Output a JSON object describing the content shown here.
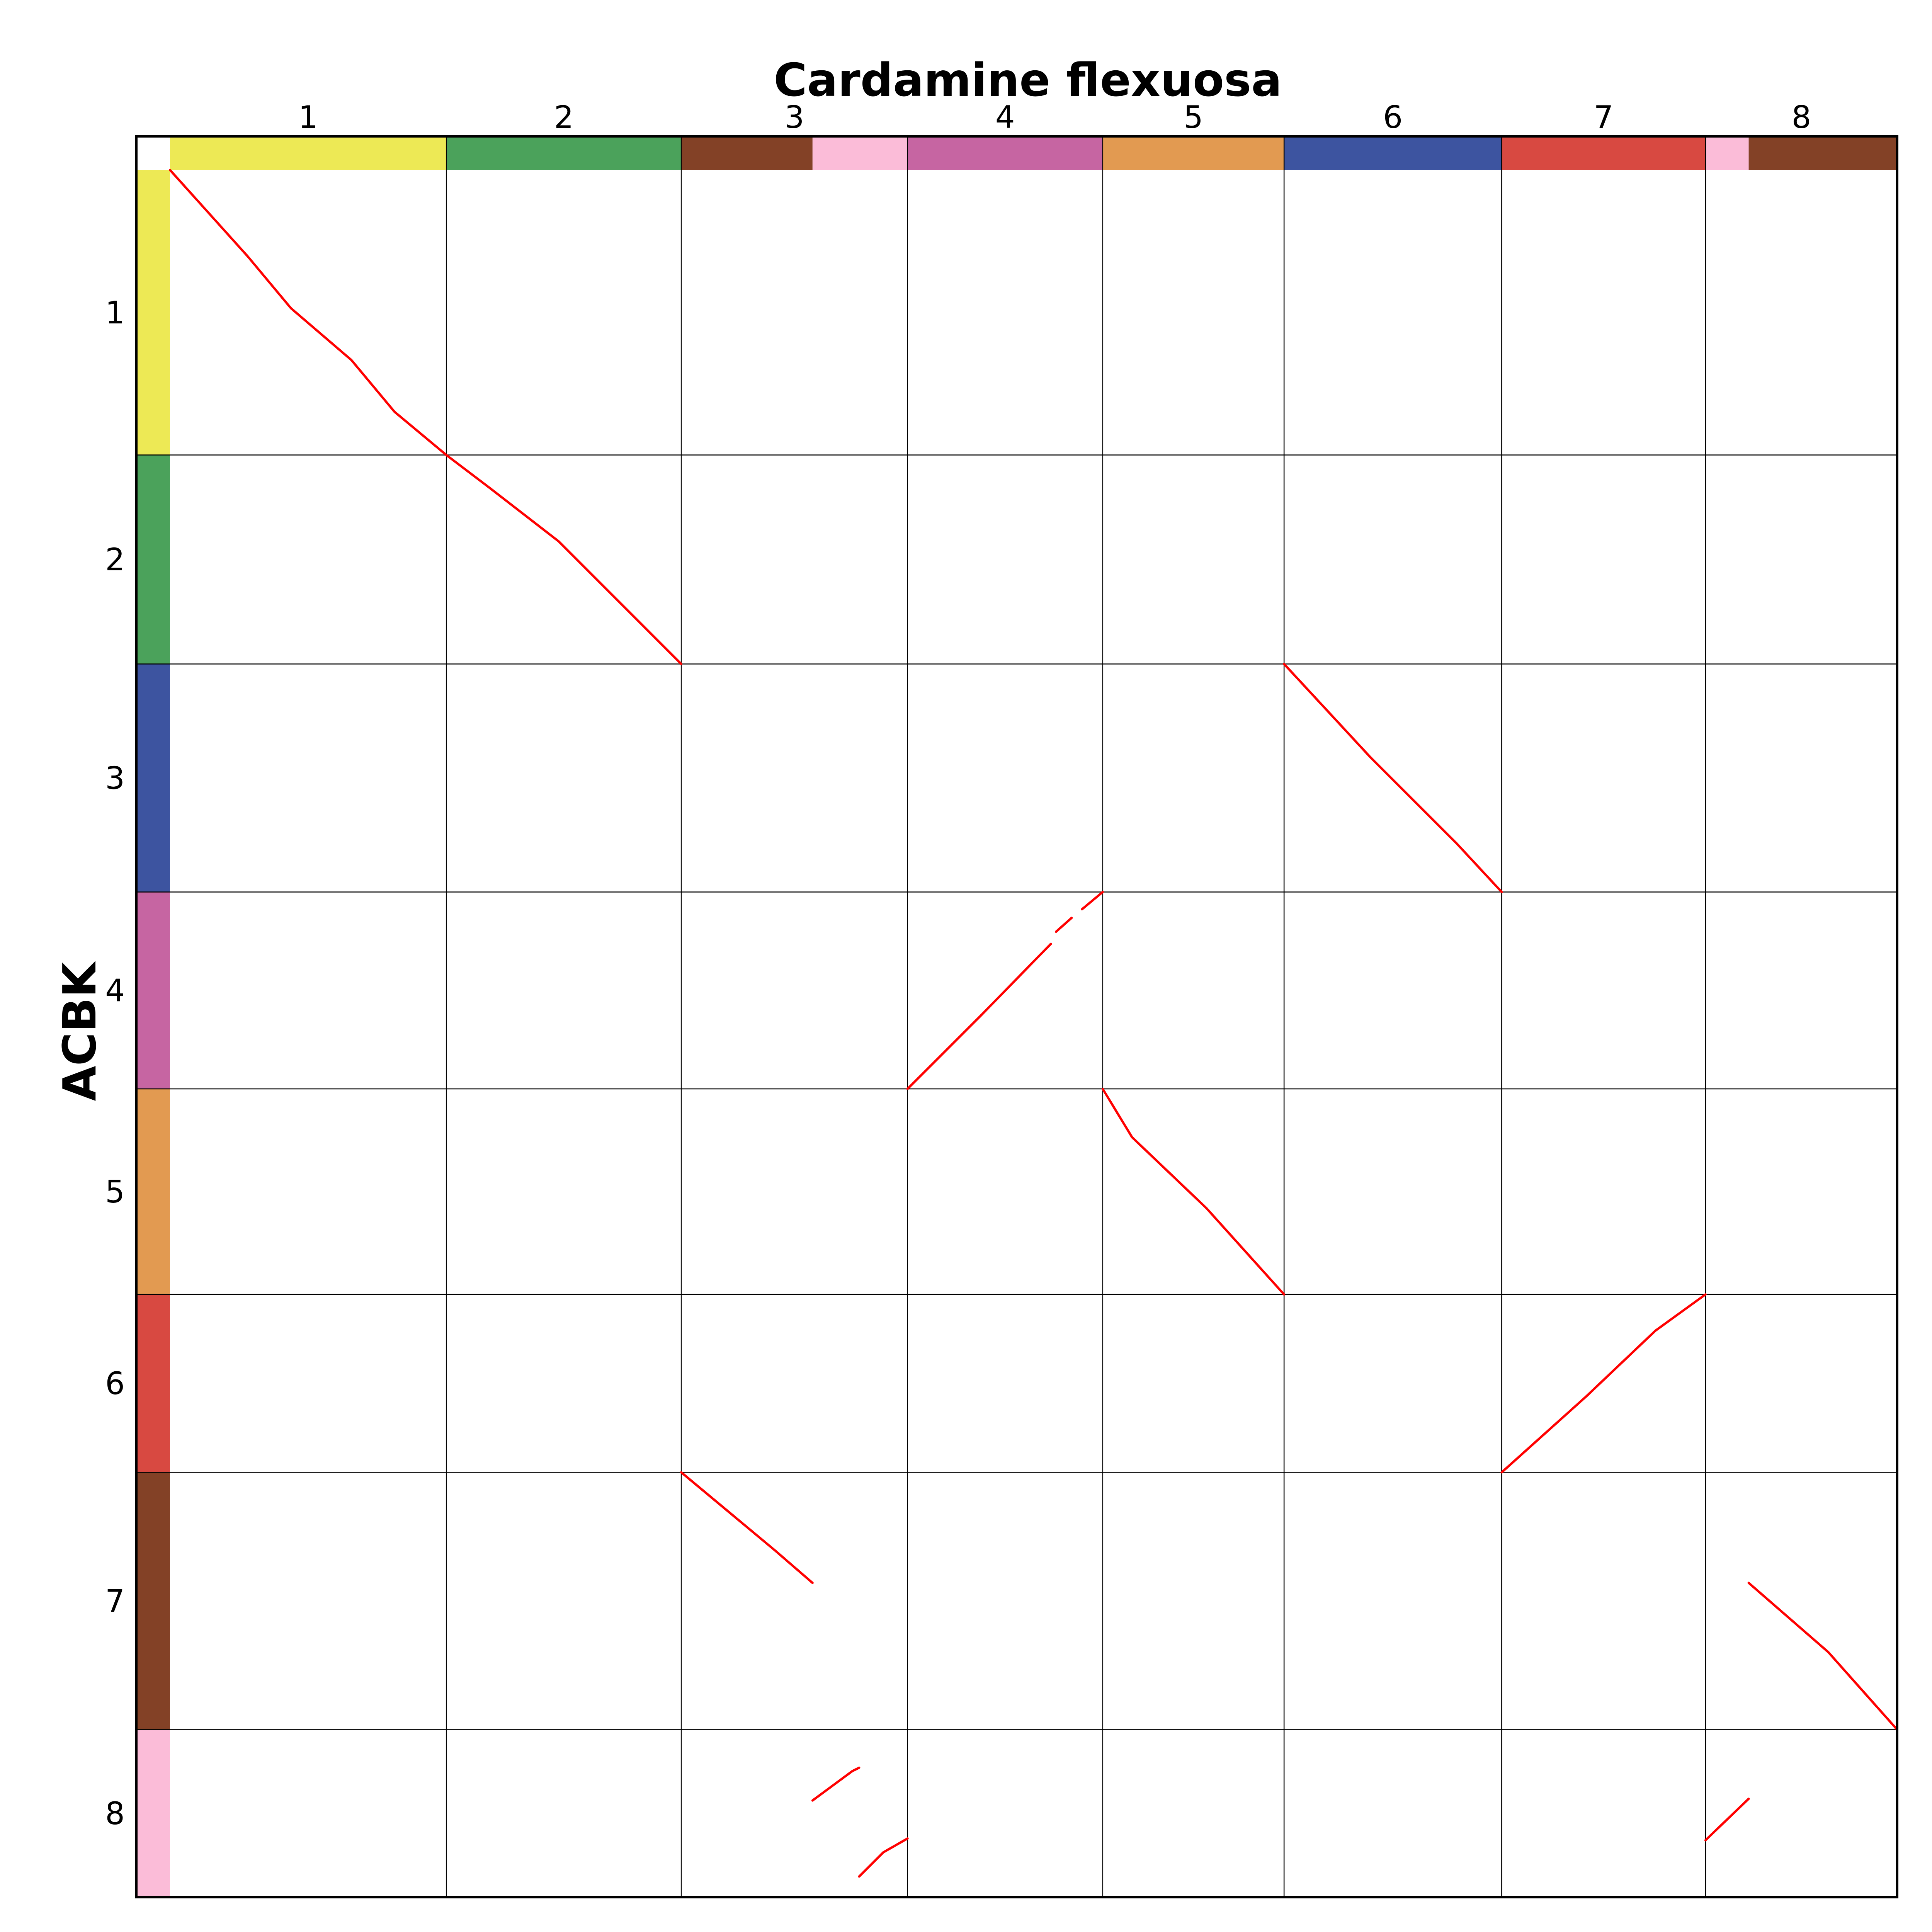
{
  "chart_data": {
    "type": "scatter",
    "title": "Cardamine flexuosa",
    "xlabel": "Cardamine flexuosa",
    "ylabel": "ACBK",
    "x_chromosomes": [
      "1",
      "2",
      "3",
      "4",
      "5",
      "6",
      "7",
      "8"
    ],
    "y_chromosomes": [
      "1",
      "2",
      "3",
      "4",
      "5",
      "6",
      "7",
      "8"
    ],
    "x_boundaries": [
      0,
      0.16,
      0.296,
      0.427,
      0.54,
      0.645,
      0.771,
      0.889,
      1.0
    ],
    "y_boundaries": [
      0,
      0.165,
      0.286,
      0.418,
      0.532,
      0.651,
      0.754,
      0.903,
      1.0
    ],
    "x_color_segments": [
      {
        "start": 0.0,
        "end": 0.16,
        "color": "#ede955"
      },
      {
        "start": 0.16,
        "end": 0.296,
        "color": "#4ba25b"
      },
      {
        "start": 0.296,
        "end": 0.372,
        "color": "#834126"
      },
      {
        "start": 0.372,
        "end": 0.427,
        "color": "#fbbcd8"
      },
      {
        "start": 0.427,
        "end": 0.54,
        "color": "#c665a2"
      },
      {
        "start": 0.54,
        "end": 0.645,
        "color": "#e29a51"
      },
      {
        "start": 0.645,
        "end": 0.771,
        "color": "#3d54a0"
      },
      {
        "start": 0.771,
        "end": 0.889,
        "color": "#d84941"
      },
      {
        "start": 0.889,
        "end": 0.914,
        "color": "#fbbcd8"
      },
      {
        "start": 0.914,
        "end": 1.0,
        "color": "#834126"
      }
    ],
    "y_color_segments": [
      {
        "start": 0.0,
        "end": 0.165,
        "color": "#ede955"
      },
      {
        "start": 0.165,
        "end": 0.286,
        "color": "#4ba25b"
      },
      {
        "start": 0.286,
        "end": 0.418,
        "color": "#3d54a0"
      },
      {
        "start": 0.418,
        "end": 0.532,
        "color": "#c665a2"
      },
      {
        "start": 0.532,
        "end": 0.651,
        "color": "#e29a51"
      },
      {
        "start": 0.651,
        "end": 0.754,
        "color": "#d84941"
      },
      {
        "start": 0.754,
        "end": 0.903,
        "color": "#834126"
      },
      {
        "start": 0.903,
        "end": 1.0,
        "color": "#fbbcd8"
      }
    ],
    "synteny_color": "#ff0000",
    "segments": [
      {
        "x": [
          0.0,
          0.045,
          0.07,
          0.105,
          0.13,
          0.16
        ],
        "y": [
          0.0,
          0.05,
          0.08,
          0.11,
          0.14,
          0.165
        ]
      },
      {
        "x": [
          0.16,
          0.185,
          0.225,
          0.265,
          0.296
        ],
        "y": [
          0.165,
          0.184,
          0.215,
          0.255,
          0.286
        ]
      },
      {
        "x": [
          0.645,
          0.695,
          0.745,
          0.771
        ],
        "y": [
          0.286,
          0.34,
          0.39,
          0.418
        ]
      },
      {
        "x": [
          0.427,
          0.47,
          0.51
        ],
        "y": [
          0.532,
          0.489,
          0.448
        ]
      },
      {
        "x": [
          0.513,
          0.522
        ],
        "y": [
          0.441,
          0.433
        ]
      },
      {
        "x": [
          0.528,
          0.54
        ],
        "y": [
          0.428,
          0.418
        ]
      },
      {
        "x": [
          0.54,
          0.557,
          0.6,
          0.645
        ],
        "y": [
          0.532,
          0.56,
          0.601,
          0.651
        ]
      },
      {
        "x": [
          0.771,
          0.82,
          0.86,
          0.889
        ],
        "y": [
          0.754,
          0.71,
          0.672,
          0.651
        ]
      },
      {
        "x": [
          0.296,
          0.35,
          0.372
        ],
        "y": [
          0.754,
          0.799,
          0.818
        ]
      },
      {
        "x": [
          0.914,
          0.96,
          1.0
        ],
        "y": [
          0.818,
          0.858,
          0.903
        ]
      },
      {
        "x": [
          0.372,
          0.395,
          0.399
        ],
        "y": [
          0.944,
          0.927,
          0.925
        ]
      },
      {
        "x": [
          0.399,
          0.413,
          0.427
        ],
        "y": [
          0.988,
          0.974,
          0.966
        ]
      },
      {
        "x": [
          0.889,
          0.914
        ],
        "y": [
          0.967,
          0.943
        ]
      }
    ]
  }
}
